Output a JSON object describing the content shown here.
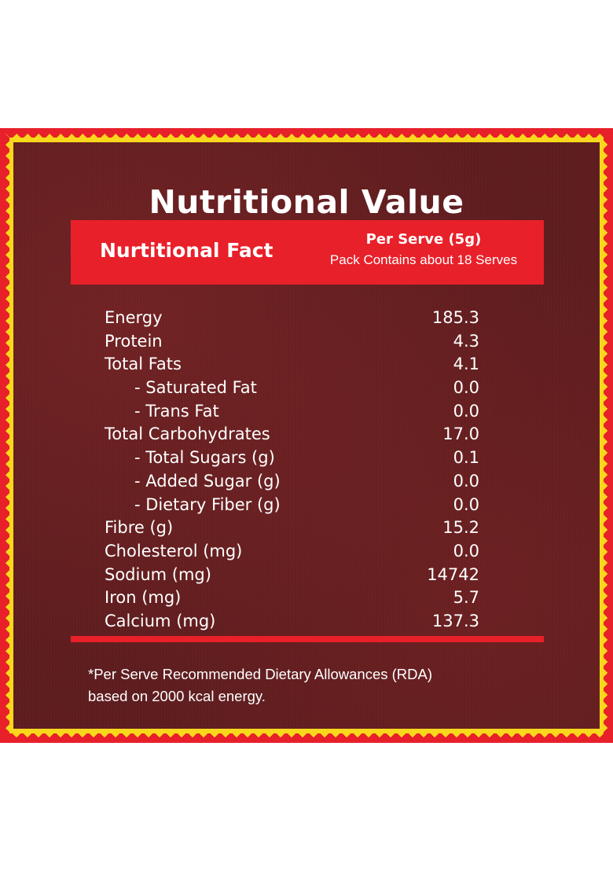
{
  "title": "Nutritional Value",
  "header": {
    "left_label": "Nurtitional Fact",
    "per_serve": "Per Serve  (5g)",
    "pack_contains": "Pack Contains about 18 Serves"
  },
  "nutrients": [
    {
      "label": "Energy",
      "value": "185.3",
      "indent": false
    },
    {
      "label": "Protein",
      "value": "4.3",
      "indent": false
    },
    {
      "label": "Total Fats",
      "value": "4.1",
      "indent": false
    },
    {
      "label": "- Saturated Fat",
      "value": "0.0",
      "indent": true
    },
    {
      "label": "- Trans Fat",
      "value": "0.0",
      "indent": true
    },
    {
      "label": "Total Carbohydrates",
      "value": "17.0",
      "indent": false
    },
    {
      "label": "- Total Sugars (g)",
      "value": "0.1",
      "indent": true
    },
    {
      "label": "- Added Sugar (g)",
      "value": "0.0",
      "indent": true
    },
    {
      "label": "- Dietary Fiber (g)",
      "value": "0.0",
      "indent": true
    },
    {
      "label": "Fibre (g)",
      "value": "15.2",
      "indent": false
    },
    {
      "label": "Cholesterol (mg)",
      "value": "0.0",
      "indent": false
    },
    {
      "label": "Sodium (mg)",
      "value": "14742",
      "indent": false
    },
    {
      "label": "Iron (mg)",
      "value": "5.7",
      "indent": false
    },
    {
      "label": "Calcium (mg)",
      "value": "137.3",
      "indent": false
    }
  ],
  "footnote": {
    "line1": "*Per Serve Recommended Dietary Allowances (RDA)",
    "line2": "based on 2000 kcal energy."
  },
  "colors": {
    "background": "#5c1d1f",
    "accent_red": "#e8202a",
    "border_yellow": "#f9d71c",
    "text": "#ffffff"
  }
}
